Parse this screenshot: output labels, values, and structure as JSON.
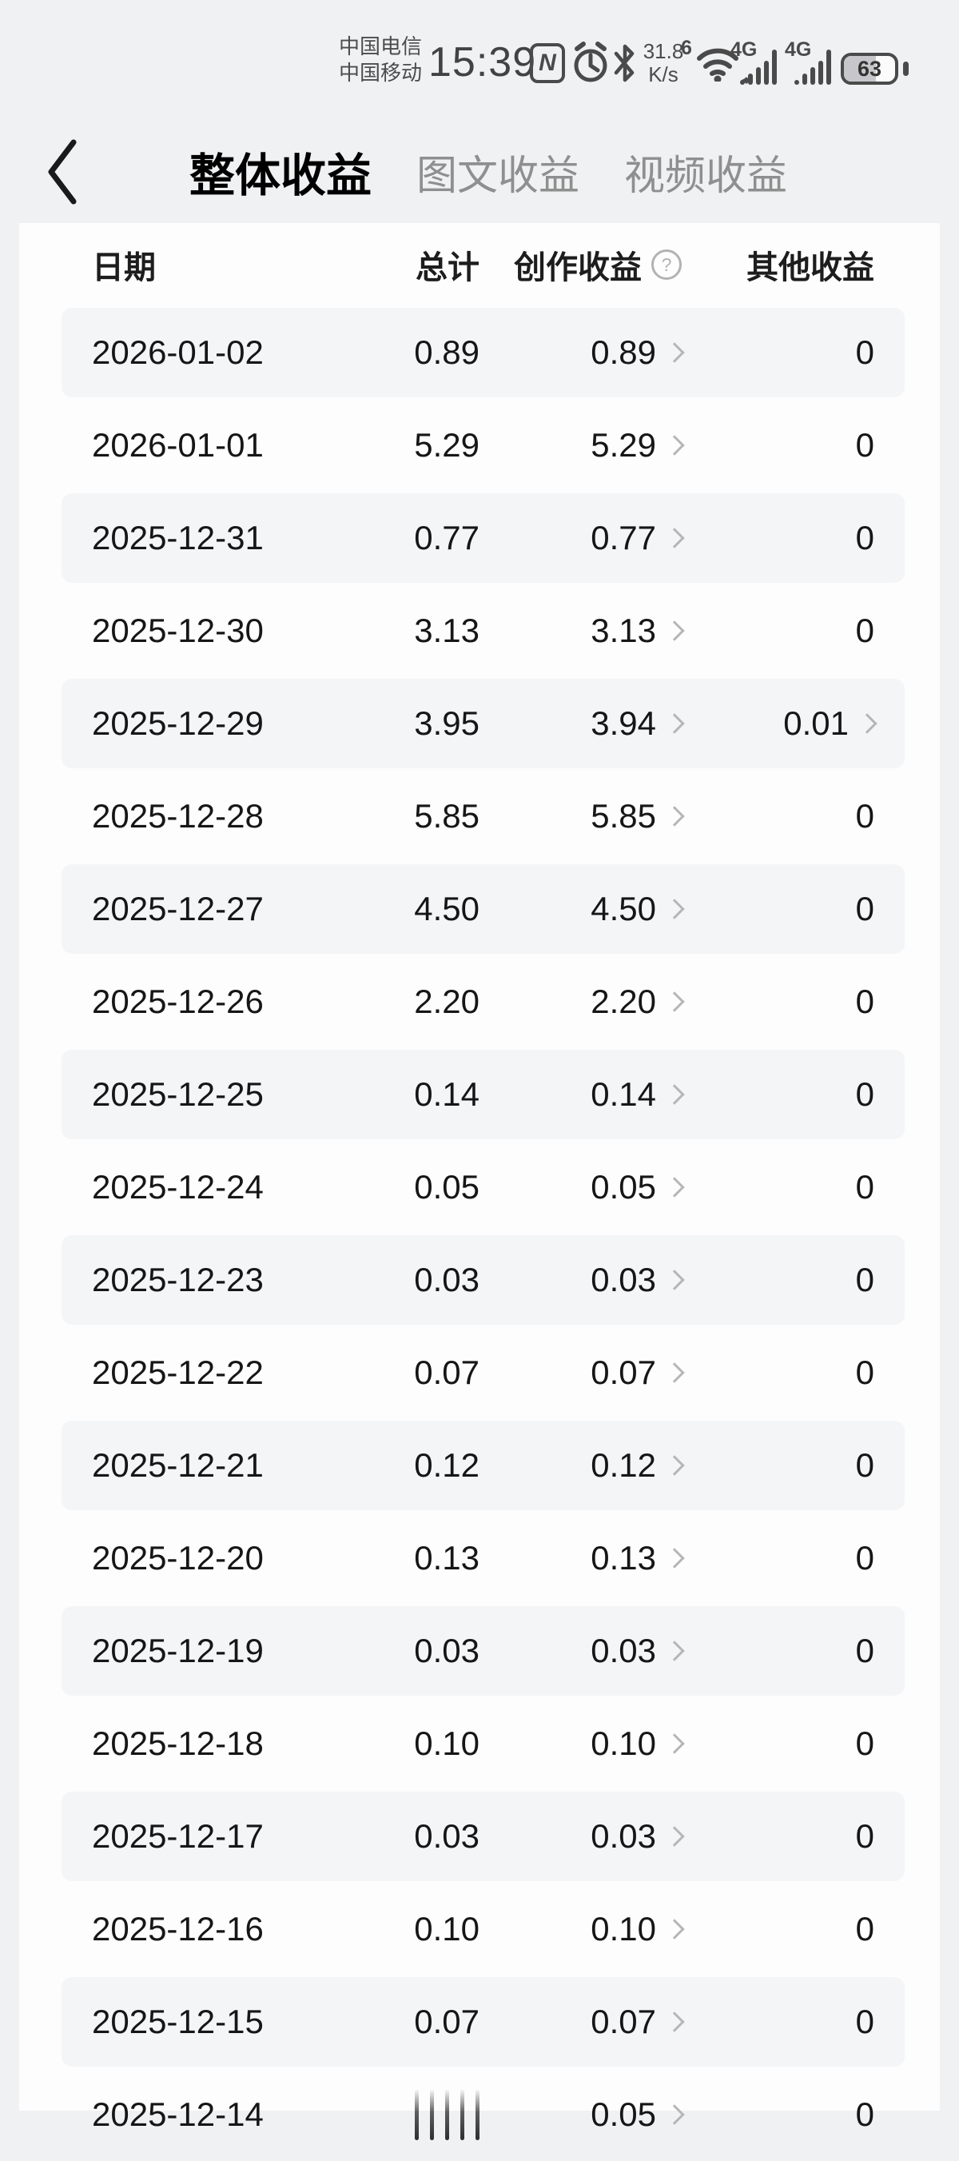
{
  "status_bar": {
    "carrier_line1": "中国电信",
    "carrier_line2": "中国移动",
    "time": "15:39",
    "nfc_letter": "N",
    "network_speed_value": "31.8",
    "network_speed_unit": "K/s",
    "wifi_standard": "6",
    "wifi_traffic_arrows": "◂▸",
    "sim1_network_type": "4G",
    "sim2_network_type": "4G",
    "battery_percent": "63"
  },
  "nav": {
    "back_label": "back",
    "tabs": [
      {
        "label": "整体收益",
        "active": true
      },
      {
        "label": "图文收益",
        "active": false
      },
      {
        "label": "视频收益",
        "active": false
      }
    ]
  },
  "table": {
    "headers": {
      "date": "日期",
      "total": "总计",
      "creation": "创作收益",
      "creation_help_icon": "?",
      "other": "其他收益"
    },
    "rows": [
      {
        "date": "2026-01-02",
        "total": "0.89",
        "creation": "0.89",
        "other": "0",
        "other_link": false
      },
      {
        "date": "2026-01-01",
        "total": "5.29",
        "creation": "5.29",
        "other": "0",
        "other_link": false
      },
      {
        "date": "2025-12-31",
        "total": "0.77",
        "creation": "0.77",
        "other": "0",
        "other_link": false
      },
      {
        "date": "2025-12-30",
        "total": "3.13",
        "creation": "3.13",
        "other": "0",
        "other_link": false
      },
      {
        "date": "2025-12-29",
        "total": "3.95",
        "creation": "3.94",
        "other": "0.01",
        "other_link": true
      },
      {
        "date": "2025-12-28",
        "total": "5.85",
        "creation": "5.85",
        "other": "0",
        "other_link": false
      },
      {
        "date": "2025-12-27",
        "total": "4.50",
        "creation": "4.50",
        "other": "0",
        "other_link": false
      },
      {
        "date": "2025-12-26",
        "total": "2.20",
        "creation": "2.20",
        "other": "0",
        "other_link": false
      },
      {
        "date": "2025-12-25",
        "total": "0.14",
        "creation": "0.14",
        "other": "0",
        "other_link": false
      },
      {
        "date": "2025-12-24",
        "total": "0.05",
        "creation": "0.05",
        "other": "0",
        "other_link": false
      },
      {
        "date": "2025-12-23",
        "total": "0.03",
        "creation": "0.03",
        "other": "0",
        "other_link": false
      },
      {
        "date": "2025-12-22",
        "total": "0.07",
        "creation": "0.07",
        "other": "0",
        "other_link": false
      },
      {
        "date": "2025-12-21",
        "total": "0.12",
        "creation": "0.12",
        "other": "0",
        "other_link": false
      },
      {
        "date": "2025-12-20",
        "total": "0.13",
        "creation": "0.13",
        "other": "0",
        "other_link": false
      },
      {
        "date": "2025-12-19",
        "total": "0.03",
        "creation": "0.03",
        "other": "0",
        "other_link": false
      },
      {
        "date": "2025-12-18",
        "total": "0.10",
        "creation": "0.10",
        "other": "0",
        "other_link": false
      },
      {
        "date": "2025-12-17",
        "total": "0.03",
        "creation": "0.03",
        "other": "0",
        "other_link": false
      },
      {
        "date": "2025-12-16",
        "total": "0.10",
        "creation": "0.10",
        "other": "0",
        "other_link": false
      },
      {
        "date": "2025-12-15",
        "total": "0.07",
        "creation": "0.07",
        "other": "0",
        "other_link": false
      },
      {
        "date": "2025-12-14",
        "total": "",
        "total_loading": true,
        "creation": "0.05",
        "other": "0",
        "other_link": false
      }
    ]
  },
  "colors": {
    "page_bg": "#f0f1f3",
    "card_bg": "#fdfdfe",
    "row_stripe": "#f4f5f7",
    "text": "#161616",
    "tab_inactive": "#8f8f8f",
    "status_icon": "#4a4a4a",
    "link_chevron": "#b6b6b6"
  }
}
